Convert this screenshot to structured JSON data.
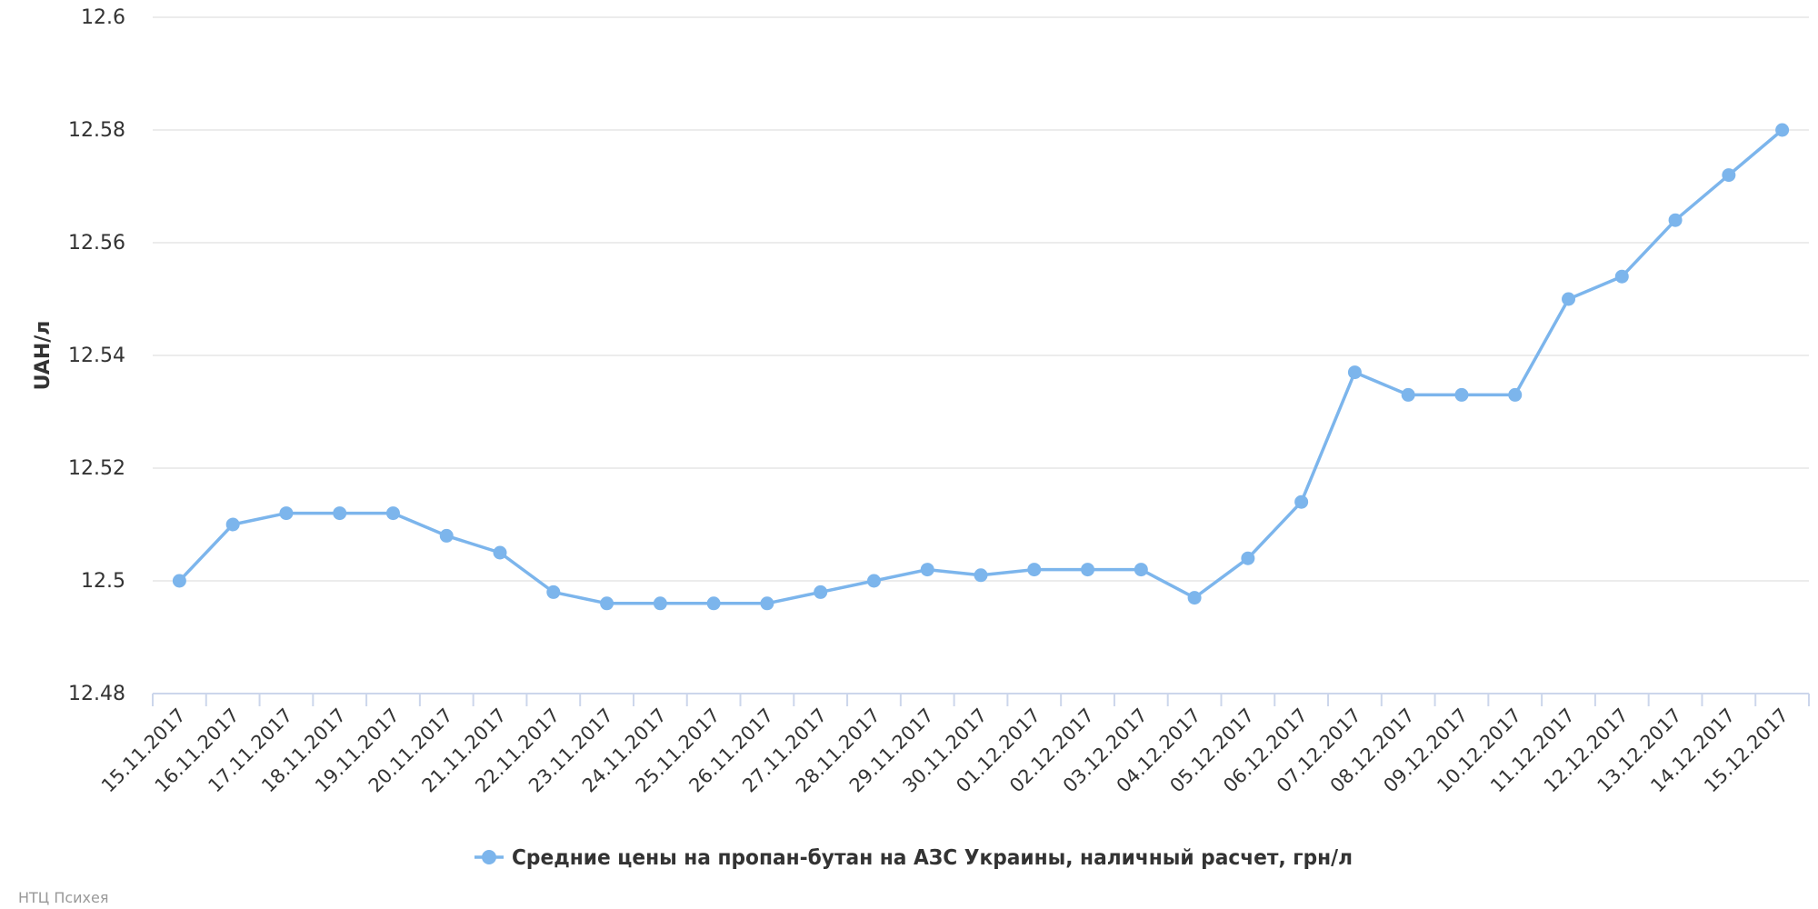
{
  "chart_data": {
    "type": "line",
    "ylabel": "UAH/л",
    "xlabel": "",
    "ylim": [
      12.48,
      12.6
    ],
    "yticks": [
      "12.48",
      "12.5",
      "12.52",
      "12.54",
      "12.56",
      "12.58",
      "12.6"
    ],
    "grid": true,
    "legend_position": "bottom-center",
    "categories": [
      "15.11.2017",
      "16.11.2017",
      "17.11.2017",
      "18.11.2017",
      "19.11.2017",
      "20.11.2017",
      "21.11.2017",
      "22.11.2017",
      "23.11.2017",
      "24.11.2017",
      "25.11.2017",
      "26.11.2017",
      "27.11.2017",
      "28.11.2017",
      "29.11.2017",
      "30.11.2017",
      "01.12.2017",
      "02.12.2017",
      "03.12.2017",
      "04.12.2017",
      "05.12.2017",
      "06.12.2017",
      "07.12.2017",
      "08.12.2017",
      "09.12.2017",
      "10.12.2017",
      "11.12.2017",
      "12.12.2017",
      "13.12.2017",
      "14.12.2017",
      "15.12.2017"
    ],
    "series": [
      {
        "name": "Средние цены на пропан-бутан на АЗС Украины, наличный расчет, грн/л",
        "color": "#7cb5ec",
        "values": [
          12.5,
          12.51,
          12.512,
          12.512,
          12.512,
          12.508,
          12.505,
          12.498,
          12.496,
          12.496,
          12.496,
          12.496,
          12.498,
          12.5,
          12.502,
          12.501,
          12.502,
          12.502,
          12.502,
          12.497,
          12.504,
          12.514,
          12.537,
          12.533,
          12.533,
          12.533,
          12.55,
          12.554,
          12.564,
          12.572,
          12.58
        ]
      }
    ]
  },
  "credit": "НТЦ Психея"
}
